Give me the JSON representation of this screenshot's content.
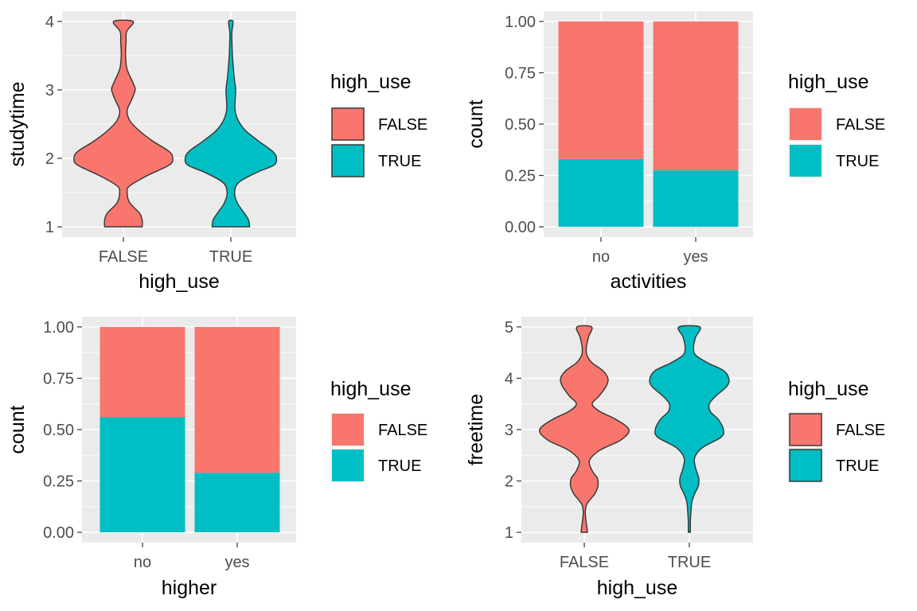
{
  "colors": {
    "FALSE": "#F8766D",
    "TRUE": "#00BFC4",
    "panel_bg": "#EBEBEB",
    "grid_major": "#FFFFFF",
    "outline": "#333333"
  },
  "chart_data": [
    {
      "type": "violin",
      "xlabel": "high_use",
      "ylabel": "studytime",
      "categories": [
        "FALSE",
        "TRUE"
      ],
      "ylim": [
        1,
        4
      ],
      "yticks": [
        "1",
        "2",
        "3",
        "4"
      ],
      "legend": {
        "title": "high_use",
        "entries": [
          "FALSE",
          "TRUE"
        ],
        "outlined": true,
        "position": "right"
      },
      "density": [
        {
          "name": "FALSE",
          "fill": "FALSE",
          "points": [
            [
              1.0,
              0.35
            ],
            [
              1.1,
              0.35
            ],
            [
              1.2,
              0.3
            ],
            [
              1.35,
              0.12
            ],
            [
              1.5,
              0.07
            ],
            [
              1.6,
              0.12
            ],
            [
              1.75,
              0.45
            ],
            [
              1.9,
              0.85
            ],
            [
              2.0,
              0.92
            ],
            [
              2.1,
              0.85
            ],
            [
              2.25,
              0.55
            ],
            [
              2.4,
              0.3
            ],
            [
              2.55,
              0.12
            ],
            [
              2.7,
              0.07
            ],
            [
              2.85,
              0.15
            ],
            [
              3.0,
              0.22
            ],
            [
              3.1,
              0.18
            ],
            [
              3.3,
              0.07
            ],
            [
              3.5,
              0.04
            ],
            [
              3.7,
              0.05
            ],
            [
              3.85,
              0.06
            ],
            [
              4.0,
              0.18
            ]
          ]
        },
        {
          "name": "TRUE",
          "fill": "TRUE",
          "points": [
            [
              1.0,
              0.35
            ],
            [
              1.1,
              0.33
            ],
            [
              1.2,
              0.25
            ],
            [
              1.35,
              0.12
            ],
            [
              1.5,
              0.07
            ],
            [
              1.65,
              0.15
            ],
            [
              1.8,
              0.5
            ],
            [
              1.9,
              0.8
            ],
            [
              2.0,
              0.85
            ],
            [
              2.1,
              0.78
            ],
            [
              2.25,
              0.52
            ],
            [
              2.4,
              0.28
            ],
            [
              2.55,
              0.14
            ],
            [
              2.7,
              0.08
            ],
            [
              2.85,
              0.08
            ],
            [
              3.0,
              0.09
            ],
            [
              3.2,
              0.06
            ],
            [
              3.5,
              0.03
            ],
            [
              3.7,
              0.02
            ],
            [
              3.85,
              0.02
            ],
            [
              4.0,
              0.04
            ]
          ]
        }
      ]
    },
    {
      "type": "bar",
      "position": "fill",
      "xlabel": "activities",
      "ylabel": "count",
      "categories": [
        "no",
        "yes"
      ],
      "ylim": [
        0,
        1
      ],
      "yticks": [
        "0.00",
        "0.25",
        "0.50",
        "0.75",
        "1.00"
      ],
      "legend": {
        "title": "high_use",
        "entries": [
          "FALSE",
          "TRUE"
        ],
        "outlined": false,
        "position": "right"
      },
      "series": [
        {
          "name": "FALSE",
          "fill": "FALSE",
          "values": [
            0.67,
            0.725
          ]
        },
        {
          "name": "TRUE",
          "fill": "TRUE",
          "values": [
            0.33,
            0.275
          ]
        }
      ]
    },
    {
      "type": "bar",
      "position": "fill",
      "xlabel": "higher",
      "ylabel": "count",
      "categories": [
        "no",
        "yes"
      ],
      "ylim": [
        0,
        1
      ],
      "yticks": [
        "0.00",
        "0.25",
        "0.50",
        "0.75",
        "1.00"
      ],
      "legend": {
        "title": "high_use",
        "entries": [
          "FALSE",
          "TRUE"
        ],
        "outlined": false,
        "position": "right"
      },
      "series": [
        {
          "name": "FALSE",
          "fill": "FALSE",
          "values": [
            0.44,
            0.71
          ]
        },
        {
          "name": "TRUE",
          "fill": "TRUE",
          "values": [
            0.56,
            0.29
          ]
        }
      ]
    },
    {
      "type": "violin",
      "xlabel": "high_use",
      "ylabel": "freetime",
      "categories": [
        "FALSE",
        "TRUE"
      ],
      "ylim": [
        1,
        5
      ],
      "yticks": [
        "1",
        "2",
        "3",
        "4",
        "5"
      ],
      "legend": {
        "title": "high_use",
        "entries": [
          "FALSE",
          "TRUE"
        ],
        "outlined": true,
        "position": "right"
      },
      "density": [
        {
          "name": "FALSE",
          "fill": "FALSE",
          "points": [
            [
              1.0,
              0.06
            ],
            [
              1.1,
              0.05
            ],
            [
              1.25,
              0.03
            ],
            [
              1.4,
              0.02
            ],
            [
              1.55,
              0.05
            ],
            [
              1.75,
              0.2
            ],
            [
              1.9,
              0.26
            ],
            [
              2.05,
              0.25
            ],
            [
              2.2,
              0.15
            ],
            [
              2.4,
              0.1
            ],
            [
              2.6,
              0.3
            ],
            [
              2.8,
              0.7
            ],
            [
              3.0,
              0.85
            ],
            [
              3.2,
              0.6
            ],
            [
              3.35,
              0.3
            ],
            [
              3.5,
              0.15
            ],
            [
              3.65,
              0.28
            ],
            [
              3.85,
              0.42
            ],
            [
              4.0,
              0.45
            ],
            [
              4.15,
              0.35
            ],
            [
              4.3,
              0.15
            ],
            [
              4.45,
              0.05
            ],
            [
              4.6,
              0.04
            ],
            [
              4.8,
              0.08
            ],
            [
              5.0,
              0.14
            ]
          ]
        },
        {
          "name": "TRUE",
          "fill": "TRUE",
          "points": [
            [
              1.0,
              0.02
            ],
            [
              1.2,
              0.02
            ],
            [
              1.4,
              0.03
            ],
            [
              1.6,
              0.05
            ],
            [
              1.75,
              0.1
            ],
            [
              1.9,
              0.17
            ],
            [
              2.05,
              0.18
            ],
            [
              2.25,
              0.12
            ],
            [
              2.45,
              0.1
            ],
            [
              2.65,
              0.25
            ],
            [
              2.85,
              0.6
            ],
            [
              3.0,
              0.65
            ],
            [
              3.2,
              0.55
            ],
            [
              3.35,
              0.4
            ],
            [
              3.5,
              0.38
            ],
            [
              3.65,
              0.5
            ],
            [
              3.85,
              0.72
            ],
            [
              4.0,
              0.75
            ],
            [
              4.15,
              0.65
            ],
            [
              4.3,
              0.35
            ],
            [
              4.45,
              0.12
            ],
            [
              4.6,
              0.08
            ],
            [
              4.8,
              0.12
            ],
            [
              5.0,
              0.2
            ]
          ]
        }
      ]
    }
  ]
}
